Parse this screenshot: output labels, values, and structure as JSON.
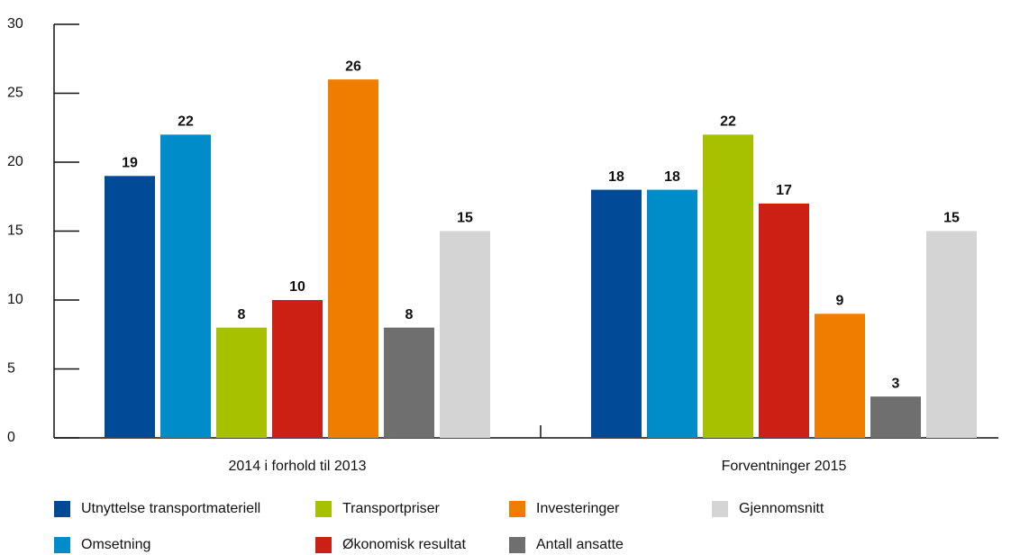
{
  "chart_data": {
    "type": "bar",
    "categories": [
      "2014 i forhold til 2013",
      "Forventninger 2015"
    ],
    "series": [
      {
        "name": "Utnyttelse transportmateriell",
        "color": "#004a97",
        "values": [
          19,
          18
        ]
      },
      {
        "name": "Omsetning",
        "color": "#008bc9",
        "values": [
          22,
          18
        ]
      },
      {
        "name": "Transportpriser",
        "color": "#a7c000",
        "values": [
          8,
          22
        ]
      },
      {
        "name": "Økonomisk resultat",
        "color": "#cc2014",
        "values": [
          10,
          17
        ]
      },
      {
        "name": "Investeringer",
        "color": "#ef7d00",
        "values": [
          26,
          9
        ]
      },
      {
        "name": "Antall ansatte",
        "color": "#6f6f6f",
        "values": [
          8,
          3
        ]
      },
      {
        "name": "Gjennomsnitt",
        "color": "#d4d4d4",
        "values": [
          15,
          15
        ]
      }
    ],
    "ylim": [
      0,
      30
    ],
    "yticks": [
      0,
      5,
      10,
      15,
      20,
      25,
      30
    ],
    "grid": false,
    "legend": "bottom"
  }
}
